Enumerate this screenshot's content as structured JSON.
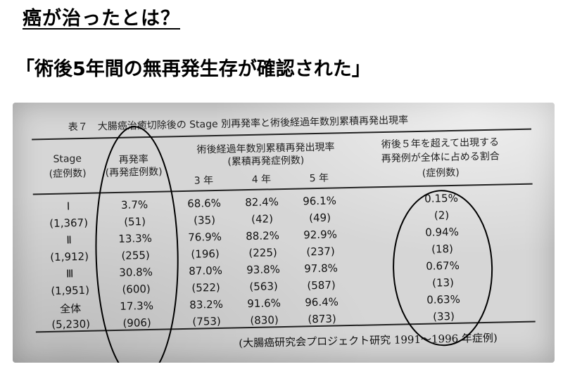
{
  "title": "癌が治ったとは？",
  "subtitle": "「術後5年間の無再発生存が確認された」",
  "table": {
    "caption": "表７　大腸癌治癒切除後の Stage 別再発率と術後経過年数別累積再発出現率",
    "headers": {
      "stage_line1": "Stage",
      "stage_line2": "(症例数)",
      "recur_line1": "再発率",
      "recur_line2": "(再発症例数)",
      "cum_line1": "術後経過年数別累積再発出現率",
      "cum_line2": "(累積再発症例数)",
      "y3": "3 年",
      "y4": "4 年",
      "y5": "5 年",
      "beyond_line1": "術後５年を超えて出現する",
      "beyond_line2": "再発例が全体に占める割合",
      "beyond_line3": "(症例数)"
    },
    "rows": [
      {
        "stage": "Ⅰ",
        "cases": "(1,367)",
        "rate": "3.7%",
        "rate_n": "(51)",
        "y3": "68.6%",
        "y3_n": "(35)",
        "y4": "82.4%",
        "y4_n": "(42)",
        "y5": "96.1%",
        "y5_n": "(49)",
        "beyond": "0.15%",
        "beyond_n": "(2)"
      },
      {
        "stage": "Ⅱ",
        "cases": "(1,912)",
        "rate": "13.3%",
        "rate_n": "(255)",
        "y3": "76.9%",
        "y3_n": "(196)",
        "y4": "88.2%",
        "y4_n": "(225)",
        "y5": "92.9%",
        "y5_n": "(237)",
        "beyond": "0.94%",
        "beyond_n": "(18)"
      },
      {
        "stage": "Ⅲ",
        "cases": "(1,951)",
        "rate": "30.8%",
        "rate_n": "(600)",
        "y3": "87.0%",
        "y3_n": "(522)",
        "y4": "93.8%",
        "y4_n": "(563)",
        "y5": "97.8%",
        "y5_n": "(587)",
        "beyond": "0.67%",
        "beyond_n": "(13)"
      },
      {
        "stage": "全体",
        "cases": "(5,230)",
        "rate": "17.3%",
        "rate_n": "(906)",
        "y3": "83.2%",
        "y3_n": "(753)",
        "y4": "91.6%",
        "y4_n": "(830)",
        "y5": "96.4%",
        "y5_n": "(873)",
        "beyond": "0.63%",
        "beyond_n": "(33)"
      }
    ],
    "source": "(大腸癌研究会プロジェクト研究 1991～1996 年症例)"
  }
}
